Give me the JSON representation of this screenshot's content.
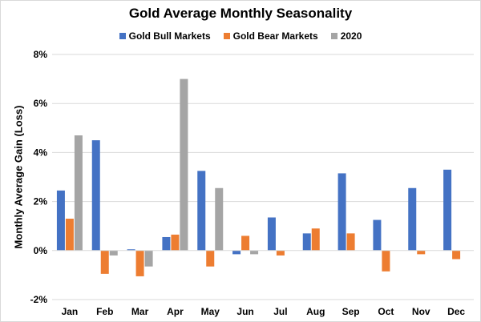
{
  "chart_data": {
    "type": "bar",
    "title": "Gold Average  Monthly Seasonality",
    "ylabel": "Monthly Average Gain (Loss)",
    "xlabel": "",
    "categories": [
      "Jan",
      "Feb",
      "Mar",
      "Apr",
      "May",
      "Jun",
      "Jul",
      "Aug",
      "Sep",
      "Oct",
      "Nov",
      "Dec"
    ],
    "series": [
      {
        "name": "Gold Bull Markets",
        "color": "#4472c4",
        "values": [
          2.45,
          4.5,
          0.05,
          0.55,
          3.25,
          -0.15,
          1.35,
          0.7,
          3.15,
          1.25,
          2.55,
          3.3
        ]
      },
      {
        "name": "Gold Bear Markets",
        "color": "#ed7d31",
        "values": [
          1.3,
          -0.95,
          -1.05,
          0.65,
          -0.65,
          0.6,
          -0.2,
          0.9,
          0.7,
          -0.85,
          -0.15,
          -0.35
        ]
      },
      {
        "name": "2020",
        "color": "#a5a5a5",
        "values": [
          4.7,
          -0.2,
          -0.65,
          7.0,
          2.55,
          -0.15,
          null,
          null,
          null,
          null,
          null,
          null
        ]
      }
    ],
    "ylim": [
      -2,
      8
    ],
    "yticks": [
      -2,
      0,
      2,
      4,
      6,
      8
    ],
    "ytick_labels": [
      "-2%",
      "0%",
      "2%",
      "4%",
      "6%",
      "8%"
    ],
    "grid": true,
    "legend_position": "top"
  }
}
